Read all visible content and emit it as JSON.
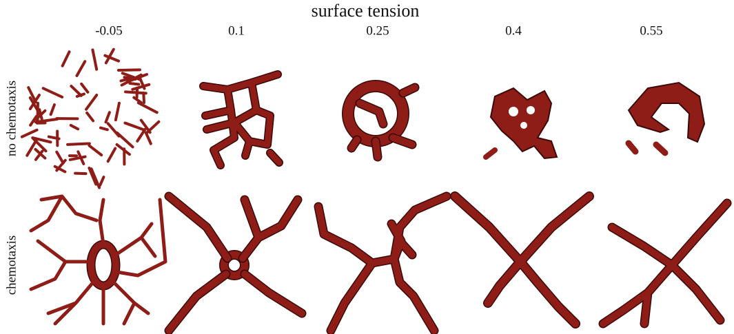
{
  "title": "surface tension",
  "columns": [
    "-0.05",
    "0.1",
    "0.25",
    "0.4",
    "0.55"
  ],
  "rows": [
    "no chemotaxis",
    "chemotaxis"
  ]
}
